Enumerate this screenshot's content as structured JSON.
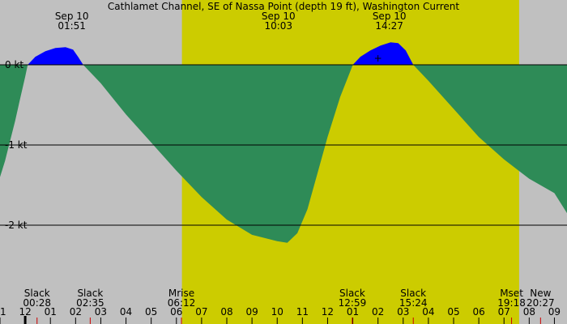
{
  "chart_data": {
    "type": "area",
    "title": "Cathlamet Channel, SE of Nassa Point (depth 19 ft), Washington Current",
    "xlabel": "",
    "ylabel": "",
    "x_unit": "hours",
    "xlim": [
      11.0,
      33.5
    ],
    "ylim": [
      -2.77,
      0.47
    ],
    "y_ticks": [
      {
        "value": 0,
        "label": "0 kt"
      },
      {
        "value": -1,
        "label": "-1 kt"
      },
      {
        "value": -2,
        "label": "-2 kt"
      }
    ],
    "x_ticks": [
      "11",
      "12",
      "01",
      "02",
      "03",
      "04",
      "05",
      "06",
      "07",
      "08",
      "09",
      "10",
      "11",
      "12",
      "01",
      "02",
      "03",
      "04",
      "05",
      "06",
      "07",
      "08",
      "09"
    ],
    "x_tick_start": 11,
    "daylight": {
      "start": 18.22,
      "end": 31.6
    },
    "grid": true,
    "colors": {
      "flood": "#0000ff",
      "ebb": "#2e8b57",
      "day": "#cccc00",
      "night": "#c0c0c0",
      "line": "#000000",
      "minor_tick": "#cc0000"
    },
    "peaks": [
      {
        "date": "Sep 10",
        "time": "01:51",
        "x": 25.85,
        "value": 0.22
      },
      {
        "date": "Sep 10",
        "time": "10:03",
        "x": 34.05,
        "value": -2.22
      },
      {
        "date": "Sep 10",
        "time": "14:27",
        "x": 38.45,
        "value": 0.28
      }
    ],
    "events": [
      {
        "name": "Slack",
        "time": "00:28",
        "x": 24.47
      },
      {
        "name": "Slack",
        "time": "02:35",
        "x": 26.58
      },
      {
        "name": "Mrise",
        "time": "06:12",
        "x": 30.2
      },
      {
        "name": "Slack",
        "time": "12:59",
        "x": 36.98
      },
      {
        "name": "Slack",
        "time": "15:24",
        "x": 39.4
      },
      {
        "name": "Mset",
        "time": "19:18",
        "x": 43.3
      },
      {
        "name": "New",
        "time": "20:27",
        "x": 44.45
      }
    ],
    "series": [
      {
        "values": [
          [
            11.0,
            -1.4
          ],
          [
            11.2,
            -1.2
          ],
          [
            11.4,
            -0.95
          ],
          [
            11.6,
            -0.7
          ],
          [
            11.8,
            -0.42
          ],
          [
            12.0,
            -0.15
          ],
          [
            12.1,
            0.0
          ],
          [
            12.4,
            0.1
          ],
          [
            12.8,
            0.17
          ],
          [
            13.2,
            0.21
          ],
          [
            13.6,
            0.22
          ],
          [
            13.9,
            0.19
          ],
          [
            14.1,
            0.1
          ],
          [
            14.3,
            0.0
          ],
          [
            15.0,
            -0.23
          ],
          [
            16.0,
            -0.62
          ],
          [
            17.0,
            -0.97
          ],
          [
            18.0,
            -1.32
          ],
          [
            19.0,
            -1.65
          ],
          [
            20.0,
            -1.93
          ],
          [
            21.0,
            -2.12
          ],
          [
            22.0,
            -2.2
          ],
          [
            22.4,
            -2.22
          ],
          [
            22.8,
            -2.1
          ],
          [
            23.2,
            -1.8
          ],
          [
            23.6,
            -1.35
          ],
          [
            24.0,
            -0.9
          ],
          [
            24.5,
            -0.4
          ],
          [
            25.0,
            0.0
          ],
          [
            25.3,
            0.1
          ],
          [
            25.7,
            0.18
          ],
          [
            26.1,
            0.24
          ],
          [
            26.5,
            0.28
          ],
          [
            26.8,
            0.27
          ],
          [
            27.1,
            0.18
          ],
          [
            27.4,
            0.0
          ],
          [
            28.0,
            -0.2
          ],
          [
            29.0,
            -0.55
          ],
          [
            30.0,
            -0.9
          ],
          [
            31.0,
            -1.18
          ],
          [
            32.0,
            -1.42
          ],
          [
            33.0,
            -1.6
          ],
          [
            33.5,
            -1.85
          ]
        ]
      }
    ]
  }
}
